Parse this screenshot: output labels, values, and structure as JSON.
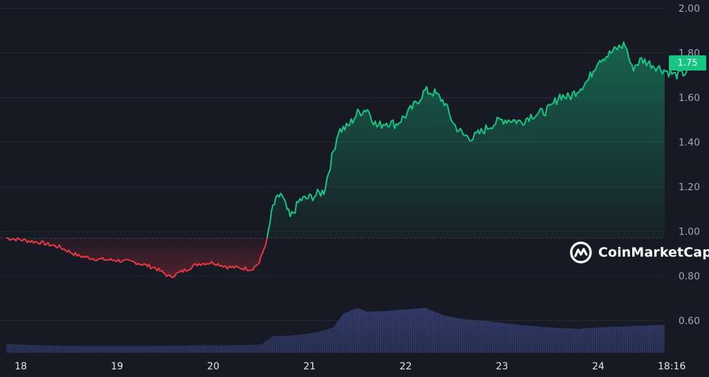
{
  "chart_data": {
    "type": "area",
    "title": "",
    "xlabel": "",
    "ylabel": "",
    "ylim": [
      0.48,
      2.0
    ],
    "yticks": [
      "2.00",
      "1.80",
      "1.60",
      "1.40",
      "1.20",
      "1.00",
      "0.80",
      "0.60"
    ],
    "xticks": [
      "18",
      "19",
      "20",
      "21",
      "22",
      "23",
      "24",
      "18:16"
    ],
    "baseline": 0.97,
    "current_price": "1.75",
    "colors": {
      "up": "#16c784",
      "down": "#ea3943",
      "volume": "#2b3358"
    },
    "series": [
      {
        "values_by_day": [
          [
            17.85,
            0.97
          ],
          [
            18.0,
            0.962
          ],
          [
            18.2,
            0.95
          ],
          [
            18.4,
            0.93
          ],
          [
            18.6,
            0.89
          ],
          [
            18.8,
            0.875
          ],
          [
            19.0,
            0.87
          ],
          [
            19.2,
            0.86
          ],
          [
            19.4,
            0.835
          ],
          [
            19.55,
            0.795
          ],
          [
            19.7,
            0.825
          ],
          [
            19.85,
            0.855
          ],
          [
            20.0,
            0.86
          ],
          [
            20.15,
            0.84
          ],
          [
            20.3,
            0.835
          ],
          [
            20.4,
            0.83
          ],
          [
            20.48,
            0.86
          ],
          [
            20.56,
            0.965
          ],
          [
            20.62,
            1.11
          ],
          [
            20.7,
            1.17
          ],
          [
            20.8,
            1.06
          ],
          [
            20.9,
            1.14
          ],
          [
            21.0,
            1.15
          ],
          [
            21.15,
            1.18
          ],
          [
            21.25,
            1.36
          ],
          [
            21.3,
            1.45
          ],
          [
            21.4,
            1.47
          ],
          [
            21.5,
            1.53
          ],
          [
            21.6,
            1.55
          ],
          [
            21.7,
            1.47
          ],
          [
            21.8,
            1.49
          ],
          [
            21.9,
            1.48
          ],
          [
            22.0,
            1.52
          ],
          [
            22.1,
            1.57
          ],
          [
            22.2,
            1.63
          ],
          [
            22.3,
            1.62
          ],
          [
            22.4,
            1.58
          ],
          [
            22.5,
            1.48
          ],
          [
            22.6,
            1.43
          ],
          [
            22.7,
            1.42
          ],
          [
            22.8,
            1.45
          ],
          [
            22.9,
            1.48
          ],
          [
            23.0,
            1.5
          ],
          [
            23.1,
            1.5
          ],
          [
            23.2,
            1.49
          ],
          [
            23.3,
            1.52
          ],
          [
            23.4,
            1.53
          ],
          [
            23.5,
            1.55
          ],
          [
            23.6,
            1.61
          ],
          [
            23.7,
            1.6
          ],
          [
            23.8,
            1.64
          ],
          [
            23.9,
            1.68
          ],
          [
            24.0,
            1.77
          ],
          [
            24.1,
            1.79
          ],
          [
            24.2,
            1.82
          ],
          [
            24.28,
            1.84
          ],
          [
            24.35,
            1.73
          ],
          [
            24.45,
            1.77
          ],
          [
            24.6,
            1.74
          ],
          [
            24.7,
            1.72
          ],
          [
            24.8,
            1.7
          ],
          [
            24.9,
            1.71
          ],
          [
            24.98,
            1.75
          ]
        ]
      }
    ],
    "volume_relative": [
      [
        17.85,
        0.12
      ],
      [
        18.2,
        0.1
      ],
      [
        18.6,
        0.09
      ],
      [
        19.0,
        0.09
      ],
      [
        19.4,
        0.09
      ],
      [
        19.8,
        0.1
      ],
      [
        20.2,
        0.1
      ],
      [
        20.5,
        0.11
      ],
      [
        20.62,
        0.22
      ],
      [
        20.9,
        0.24
      ],
      [
        21.1,
        0.28
      ],
      [
        21.25,
        0.34
      ],
      [
        21.35,
        0.52
      ],
      [
        21.5,
        0.6
      ],
      [
        21.6,
        0.55
      ],
      [
        21.8,
        0.56
      ],
      [
        22.0,
        0.58
      ],
      [
        22.2,
        0.6
      ],
      [
        22.4,
        0.5
      ],
      [
        22.6,
        0.45
      ],
      [
        22.8,
        0.43
      ],
      [
        23.0,
        0.4
      ],
      [
        23.2,
        0.37
      ],
      [
        23.4,
        0.35
      ],
      [
        23.6,
        0.33
      ],
      [
        23.8,
        0.32
      ],
      [
        24.0,
        0.34
      ],
      [
        24.2,
        0.35
      ],
      [
        24.4,
        0.36
      ],
      [
        24.6,
        0.37
      ],
      [
        24.8,
        0.38
      ],
      [
        24.98,
        0.38
      ]
    ]
  },
  "watermark": {
    "brand_text": "CoinMarketCap",
    "logo_icon": "coinmarketcap-logo-icon"
  }
}
